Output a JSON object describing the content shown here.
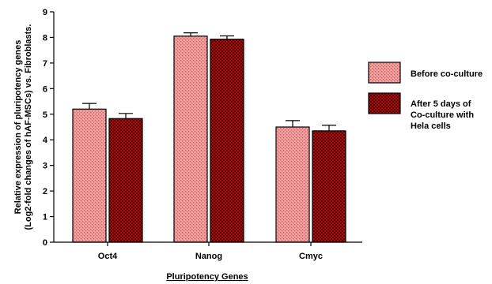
{
  "chart_data": {
    "type": "bar",
    "title": "",
    "categories": [
      "Oct4",
      "Nanog",
      "Cmyc"
    ],
    "series": [
      {
        "name": "Before co-culture",
        "values": [
          5.2,
          8.05,
          4.5
        ],
        "errors": [
          0.22,
          0.13,
          0.25
        ],
        "color": "#f4a0a0",
        "pattern": "dots"
      },
      {
        "name": "After 5 days of Co-culture with Hela cells",
        "values": [
          4.83,
          7.93,
          4.35
        ],
        "errors": [
          0.2,
          0.13,
          0.22
        ],
        "color": "#a50d0d",
        "pattern": "checker"
      }
    ],
    "legend_lines": [
      [
        "Before co-culture"
      ],
      [
        "After 5 days of",
        "Co-culture with",
        "Hela cells"
      ]
    ],
    "xlabel": "Pluripotency Genes",
    "ylabel_lines": [
      "Relative expression of pluripotency genes",
      "(Log2-fold changes of hAF-MSCs) vs. Fibroblasts."
    ],
    "ylim": [
      0,
      9
    ],
    "yticks": [
      0,
      1,
      2,
      3,
      4,
      5,
      6,
      7,
      8,
      9
    ],
    "grid": false,
    "legend_position": "right"
  }
}
